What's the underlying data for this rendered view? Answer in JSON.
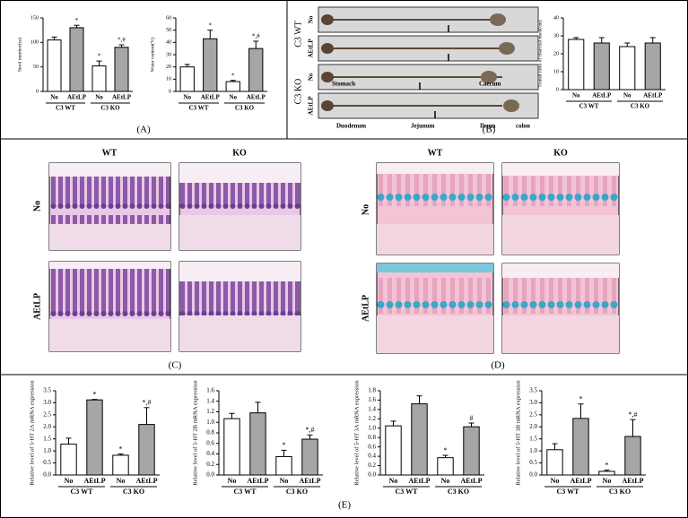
{
  "chart_data": [
    {
      "type": "bar",
      "y_label": "Stool number(ea)",
      "categories": [
        "No",
        "AEtLP",
        "No",
        "AEtLP"
      ],
      "groups": [
        "C3 WT",
        "C3 KO"
      ],
      "values": [
        105,
        130,
        52,
        90
      ],
      "errors": [
        6,
        5,
        10,
        5
      ],
      "colors": [
        "#ffffff",
        "#a6a6a6",
        "#ffffff",
        "#a6a6a6"
      ],
      "annotations": [
        null,
        "*",
        "*",
        "*,#"
      ],
      "ylim": [
        0,
        150
      ],
      "yticks": [
        0,
        50,
        100,
        150
      ]
    },
    {
      "type": "bar",
      "y_label": "Water content(%)",
      "categories": [
        "No",
        "AEtLP",
        "No",
        "AEtLP"
      ],
      "groups": [
        "C3 WT",
        "C3 KO"
      ],
      "values": [
        20,
        43,
        8,
        35
      ],
      "errors": [
        2,
        7,
        1,
        6
      ],
      "colors": [
        "#ffffff",
        "#a6a6a6",
        "#ffffff",
        "#a6a6a6"
      ],
      "annotations": [
        null,
        "*",
        "*",
        "*,#"
      ],
      "ylim": [
        0,
        60
      ],
      "yticks": [
        0,
        10,
        20,
        30,
        40,
        50,
        60
      ]
    },
    {
      "type": "bar",
      "y_label": "Transit ratio of charcoal meal(cm)",
      "categories": [
        "No",
        "AEtLP",
        "No",
        "AEtLP"
      ],
      "groups": [
        "C3 WT",
        "C3 KO"
      ],
      "values": [
        28,
        26,
        24,
        26
      ],
      "errors": [
        1,
        3,
        2,
        3
      ],
      "colors": [
        "#ffffff",
        "#a6a6a6",
        "#ffffff",
        "#a6a6a6"
      ],
      "annotations": [
        null,
        null,
        null,
        null
      ],
      "ylim": [
        0,
        40
      ],
      "yticks": [
        0,
        10,
        20,
        30,
        40
      ]
    },
    {
      "type": "bar",
      "y_label": "Relative level of 5-HT 2A mRNA expression",
      "categories": [
        "No",
        "AEtLP",
        "No",
        "AEtLP"
      ],
      "groups": [
        "C3 WT",
        "C3 KO"
      ],
      "values": [
        1.28,
        3.12,
        0.82,
        2.1
      ],
      "errors": [
        0.25,
        0.02,
        0.05,
        0.7
      ],
      "colors": [
        "#ffffff",
        "#a6a6a6",
        "#ffffff",
        "#a6a6a6"
      ],
      "annotations": [
        null,
        "*",
        "*",
        "*,#"
      ],
      "ylim": [
        0,
        3.5
      ],
      "yticks": [
        {
          "value": 0,
          "label": "0.0"
        },
        0.5,
        {
          "value": 1,
          "label": "1.0"
        },
        1.5,
        {
          "value": 2,
          "label": "2.0"
        },
        2.5,
        {
          "value": 3,
          "label": "3.0"
        },
        3.5
      ]
    },
    {
      "type": "bar",
      "y_label": "Relative level of 5-HT 2B mRNA expression",
      "categories": [
        "No",
        "AEtLP",
        "No",
        "AEtLP"
      ],
      "groups": [
        "C3 WT",
        "C3 KO"
      ],
      "values": [
        1.07,
        1.18,
        0.35,
        0.68
      ],
      "errors": [
        0.1,
        0.2,
        0.12,
        0.08
      ],
      "colors": [
        "#ffffff",
        "#a6a6a6",
        "#ffffff",
        "#a6a6a6"
      ],
      "annotations": [
        null,
        null,
        "*",
        "*,#"
      ],
      "ylim": [
        0,
        1.6
      ],
      "yticks": [
        {
          "value": 0,
          "label": "0.0"
        },
        0.2,
        0.4,
        0.6,
        0.8,
        {
          "value": 1,
          "label": "1.0"
        },
        1.2,
        1.4,
        1.6
      ]
    },
    {
      "type": "bar",
      "y_label": "Relative level of 5-HT 3A mRNA expression",
      "categories": [
        "No",
        "AEtLP",
        "No",
        "AEtLP"
      ],
      "groups": [
        "C3 WT",
        "C3 KO"
      ],
      "values": [
        1.05,
        1.52,
        0.37,
        1.03
      ],
      "errors": [
        0.1,
        0.17,
        0.05,
        0.08
      ],
      "colors": [
        "#ffffff",
        "#a6a6a6",
        "#ffffff",
        "#a6a6a6"
      ],
      "annotations": [
        null,
        null,
        "*",
        "#"
      ],
      "ylim": [
        0,
        1.8
      ],
      "yticks": [
        {
          "value": 0,
          "label": "0.0"
        },
        0.2,
        0.4,
        0.6,
        0.8,
        {
          "value": 1,
          "label": "1.0"
        },
        1.2,
        1.4,
        1.6,
        1.8
      ]
    },
    {
      "type": "bar",
      "y_label": "Relative level of 5-HT 3B mRNA expression",
      "categories": [
        "No",
        "AEtLP",
        "No",
        "AEtLP"
      ],
      "groups": [
        "C3 WT",
        "C3 KO"
      ],
      "values": [
        1.05,
        2.35,
        0.15,
        1.6
      ],
      "errors": [
        0.25,
        0.6,
        0.05,
        0.7
      ],
      "colors": [
        "#ffffff",
        "#a6a6a6",
        "#ffffff",
        "#a6a6a6"
      ],
      "annotations": [
        null,
        "*",
        "*",
        "*,#"
      ],
      "ylim": [
        0,
        3.5
      ],
      "yticks": [
        {
          "value": 0,
          "label": "0.0"
        },
        0.5,
        {
          "value": 1,
          "label": "1.0"
        },
        1.5,
        {
          "value": 2,
          "label": "2.0"
        },
        2.5,
        {
          "value": 3,
          "label": "3.0"
        },
        3.5
      ]
    }
  ],
  "figure": {
    "panels": [
      "(A)",
      "(B)",
      "(C)",
      "(D)",
      "(E)"
    ],
    "intestine": {
      "groups": [
        "C3 WT",
        "C3 KO"
      ],
      "rows": [
        "No",
        "AEtLP",
        "No",
        "AEtLP"
      ],
      "segments": [
        "Stomach",
        "Caecum",
        "Duodenum",
        "Jejunum",
        "Ileum",
        "colon"
      ]
    },
    "histology_c": {
      "columns": [
        "WT",
        "KO"
      ],
      "rows": [
        "No",
        "AEtLP"
      ]
    },
    "histology_d": {
      "columns": [
        "WT",
        "KO"
      ],
      "rows": [
        "No",
        "AEtLP"
      ]
    }
  }
}
